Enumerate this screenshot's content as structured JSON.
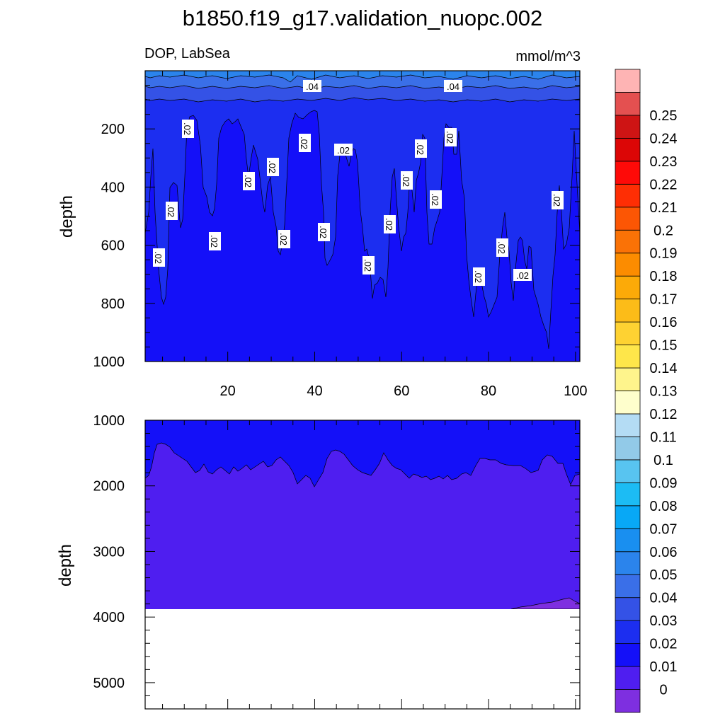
{
  "chart_data": {
    "type": "heatmap",
    "title": "b1850.f19_g17.validation_nuopc.002",
    "left_label": "DOP, LabSea",
    "right_label": "mmol/m^3",
    "ylabel": "depth",
    "xlabel": "",
    "xlim": [
      1,
      101
    ],
    "x_ticks": [
      "20",
      "40",
      "60",
      "80",
      "100"
    ],
    "x_tick_values": [
      20,
      40,
      60,
      80,
      100
    ],
    "colorbar": {
      "levels": [
        "0",
        "0.01",
        "0.02",
        "0.03",
        "0.04",
        "0.05",
        "0.06",
        "0.07",
        "0.08",
        "0.09",
        "0.1",
        "0.11",
        "0.12",
        "0.13",
        "0.14",
        "0.15",
        "0.16",
        "0.17",
        "0.18",
        "0.19",
        "0.2",
        "0.21",
        "0.22",
        "0.23",
        "0.24",
        "0.25"
      ],
      "colors": [
        "#7e2fe0",
        "#4f1ef0",
        "#1410f8",
        "#1c2ef0",
        "#3452e6",
        "#3a6fe8",
        "#2b84ec",
        "#198ff0",
        "#08a8f6",
        "#1cbcf4",
        "#58c4f0",
        "#92cae8",
        "#b4dcf4",
        "#fefecc",
        "#fef48c",
        "#fee64a",
        "#fed232",
        "#fcbc18",
        "#fcaa08",
        "#fc8c00",
        "#fa7206",
        "#fc5604",
        "#fe2e04",
        "#fe0a08",
        "#dc0606",
        "#ce1414",
        "#e45050",
        "#feb4b4"
      ]
    },
    "panels": [
      {
        "name": "upper",
        "ylim": [
          0,
          1000
        ],
        "y_ticks": [
          "200",
          "400",
          "600",
          "800",
          "1000"
        ],
        "y_tick_values": [
          200,
          400,
          600,
          800,
          1000
        ],
        "contour_labels": [
          ".04",
          ".04",
          ".02",
          ".02",
          ".02",
          ".02",
          ".02",
          ".02",
          ".02",
          ".02",
          ".02",
          ".02",
          ".02",
          ".02",
          ".02",
          ".02",
          ".02",
          ".02",
          ".02",
          ".02",
          ".02",
          ".02"
        ]
      },
      {
        "name": "lower",
        "ylim": [
          1000,
          5400
        ],
        "y_ticks": [
          "1000",
          "2000",
          "3000",
          "4000",
          "5000"
        ],
        "y_tick_values": [
          1000,
          2000,
          3000,
          4000,
          5000
        ],
        "bottom_depth": 3860
      }
    ]
  }
}
